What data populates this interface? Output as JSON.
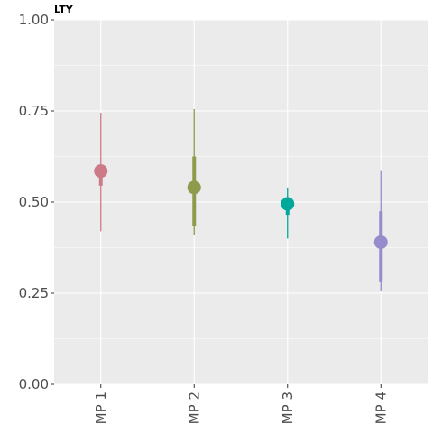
{
  "chart_data": {
    "type": "pointrange",
    "title": "LTY",
    "xlabel": "",
    "ylabel": "",
    "ylim": [
      0,
      1
    ],
    "yticks": [
      "0.00",
      "0.25",
      "0.50",
      "0.75",
      "1.00"
    ],
    "grid": true,
    "categories": [
      "MP 1",
      "MP 2",
      "MP 3",
      "MP 4"
    ],
    "series": [
      {
        "median": 0.585,
        "inner_low": 0.545,
        "inner_high": 0.595,
        "outer_low": 0.42,
        "outer_high": 0.745,
        "color": "#CC7A88"
      },
      {
        "median": 0.54,
        "inner_low": 0.435,
        "inner_high": 0.625,
        "outer_low": 0.41,
        "outer_high": 0.755,
        "color": "#8F9A4D"
      },
      {
        "median": 0.495,
        "inner_low": 0.465,
        "inner_high": 0.51,
        "outer_low": 0.4,
        "outer_high": 0.54,
        "color": "#00A89A"
      },
      {
        "median": 0.39,
        "inner_low": 0.28,
        "inner_high": 0.475,
        "outer_low": 0.255,
        "outer_high": 0.585,
        "color": "#968CCC"
      }
    ]
  }
}
